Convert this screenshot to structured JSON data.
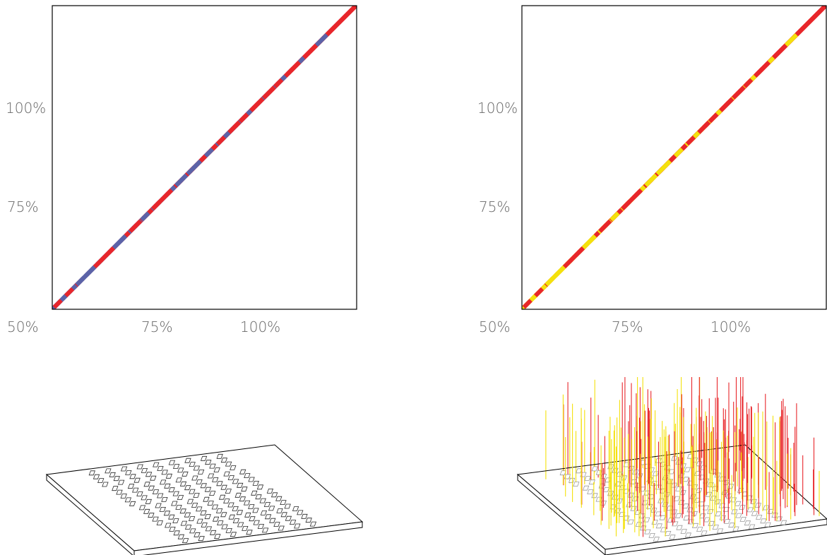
{
  "panels": [
    {
      "id": "top-left",
      "colors": {
        "primary": "#5b63a8",
        "secondary": "#e8262b"
      },
      "x_ticks": [
        "50%",
        "75%",
        "100%"
      ],
      "y_ticks": [
        "75%",
        "100%"
      ]
    },
    {
      "id": "top-right",
      "colors": {
        "primary": "#f4e10c",
        "secondary": "#e8262b"
      },
      "x_ticks": [
        "50%",
        "75%",
        "100%"
      ],
      "y_ticks": [
        "75%",
        "100%"
      ]
    }
  ],
  "bottom_panels": [
    {
      "id": "bottom-left",
      "style": "flat-grid"
    },
    {
      "id": "bottom-right",
      "style": "spike-plot",
      "colors": [
        "#f4e10c",
        "#e8262b"
      ]
    }
  ]
}
